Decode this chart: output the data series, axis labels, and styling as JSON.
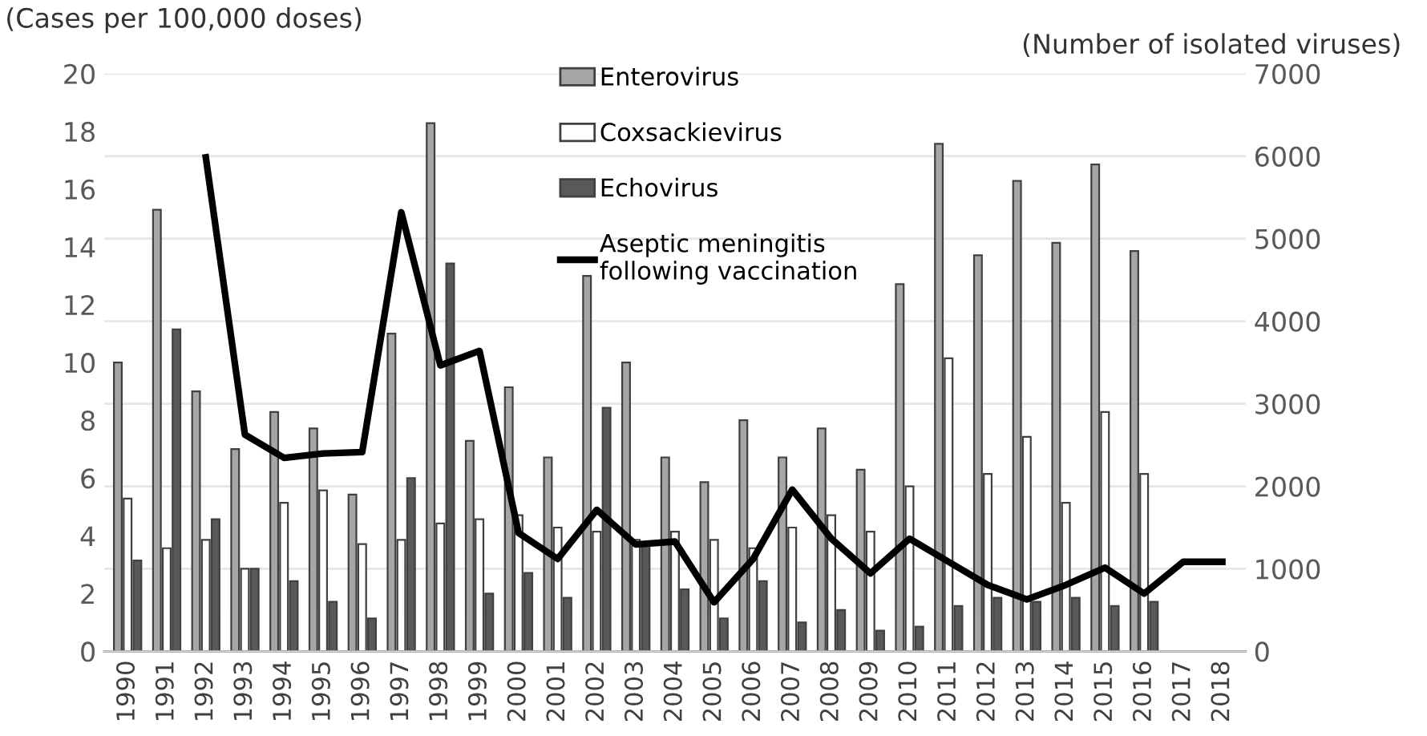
{
  "chart_data": {
    "type": "bar",
    "categories": [
      "1990",
      "1991",
      "1992",
      "1993",
      "1994",
      "1995",
      "1996",
      "1997",
      "1998",
      "1999",
      "2000",
      "2001",
      "2002",
      "2003",
      "2004",
      "2005",
      "2006",
      "2007",
      "2008",
      "2009",
      "2010",
      "2011",
      "2012",
      "2013",
      "2014",
      "2015",
      "2016",
      "2017",
      "2018"
    ],
    "ylabel": "(Cases per 100,000 doses)",
    "y2label": "(Number of isolated viruses)",
    "ylim": [
      0,
      20
    ],
    "yticks": [
      0,
      2,
      4,
      6,
      8,
      10,
      12,
      14,
      16,
      18,
      20
    ],
    "y2lim": [
      0,
      7000
    ],
    "y2ticks": [
      0,
      1000,
      2000,
      3000,
      4000,
      5000,
      6000,
      7000
    ],
    "grid": "y",
    "legend": "top",
    "series": [
      {
        "name": "Enterovirus",
        "axis": "y2",
        "color": "#a6a6a6",
        "values": [
          3500,
          5350,
          3150,
          2450,
          2900,
          2700,
          1900,
          3850,
          6400,
          2550,
          3200,
          2350,
          4550,
          3500,
          2350,
          2050,
          2800,
          2350,
          2700,
          2200,
          4450,
          6150,
          4800,
          5700,
          4950,
          5900,
          4850,
          null,
          null
        ]
      },
      {
        "name": "Coxsackievirus",
        "axis": "y2",
        "color": "#ffffff",
        "values": [
          1850,
          1250,
          1350,
          1000,
          1800,
          1950,
          1300,
          1350,
          1550,
          1600,
          1650,
          1500,
          1450,
          1350,
          1450,
          1350,
          1250,
          1500,
          1650,
          1450,
          2000,
          3550,
          2150,
          2600,
          1800,
          2900,
          2150,
          null,
          null
        ]
      },
      {
        "name": "Echovirus",
        "axis": "y2",
        "color": "#595959",
        "values": [
          1100,
          3900,
          1600,
          1000,
          850,
          600,
          400,
          2100,
          4700,
          700,
          950,
          650,
          2950,
          1300,
          750,
          400,
          850,
          350,
          500,
          250,
          300,
          550,
          650,
          600,
          650,
          550,
          600,
          null,
          null
        ]
      },
      {
        "name": "Aseptic meningitis\nfollowing vaccination",
        "type": "line",
        "axis": "y",
        "color": "#000000",
        "values": [
          null,
          null,
          17.1,
          7.5,
          6.7,
          6.85,
          6.9,
          15.2,
          9.9,
          10.4,
          4.1,
          3.2,
          4.9,
          3.7,
          3.8,
          1.7,
          3.2,
          5.6,
          3.9,
          2.7,
          3.9,
          3.1,
          2.3,
          1.8,
          2.3,
          2.9,
          2.0,
          3.1,
          3.1
        ]
      }
    ]
  }
}
